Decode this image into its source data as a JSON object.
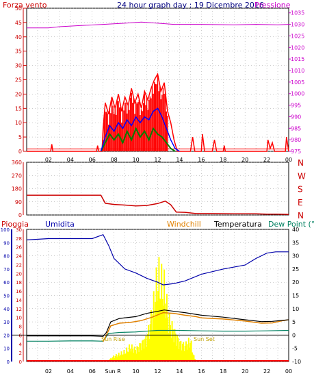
{
  "header": {
    "title": "24 hour graph day : 19 Dicembre 2016",
    "left_label": "Forza vento",
    "right_label": "Pressione"
  },
  "labels": {
    "pioggia": "Pioggia",
    "umidita": "Umidita",
    "windchill": "Windchill",
    "temperatura": "Temperatura",
    "dew_point": "Dew Point (°C",
    "sun_rise": "Sun Rise",
    "sun_set": "Sun Set",
    "sun_rise_axis": "Sun R"
  },
  "colors": {
    "wind": "#ff0000",
    "gust": "#ff0000",
    "avg": "#0000ff",
    "green": "#008000",
    "pressure": "#cc00cc",
    "direction": "#cc0000",
    "humidity": "#0000aa",
    "temperature": "#000000",
    "windchill": "#e08000",
    "dewpoint": "#008060",
    "rain": "#ff0000",
    "solar": "#ffff00",
    "axis_left": "#cc0000",
    "axis_humidity": "#0000aa",
    "axis_rain": "#cc0000",
    "axis_temp": "#000000",
    "grid": "#999999"
  },
  "chart_data": [
    {
      "type": "line",
      "name": "wind",
      "x_ticks": [
        "02",
        "04",
        "06",
        "08",
        "10",
        "12",
        "14",
        "16",
        "18",
        "20",
        "22",
        "00"
      ],
      "y_left_ticks": [
        "0",
        "5",
        "10",
        "15",
        "20",
        "25",
        "30",
        "35",
        "40",
        "45",
        "50"
      ],
      "y_right_ticks": [
        "975",
        "980",
        "985",
        "990",
        "995",
        "1000",
        "1005",
        "1010",
        "1015",
        "1020",
        "1025",
        "1030",
        "1035"
      ],
      "ylim_left": [
        0,
        50
      ],
      "ylim_right": [
        975,
        1037
      ],
      "xlim": [
        0,
        24
      ],
      "pressure": [
        [
          0,
          1028.5
        ],
        [
          2,
          1028.5
        ],
        [
          3,
          1029
        ],
        [
          5,
          1029.5
        ],
        [
          7,
          1030
        ],
        [
          9,
          1030.5
        ],
        [
          10.5,
          1031
        ],
        [
          12,
          1030.5
        ],
        [
          13.5,
          1030
        ],
        [
          16,
          1030
        ],
        [
          19,
          1029.8
        ],
        [
          21,
          1030
        ],
        [
          23,
          1029.8
        ],
        [
          24,
          1030
        ]
      ],
      "gust": [
        [
          0,
          0
        ],
        [
          2.2,
          0
        ],
        [
          2.3,
          2.5
        ],
        [
          2.4,
          0
        ],
        [
          6.4,
          0
        ],
        [
          6.5,
          2
        ],
        [
          6.6,
          0
        ],
        [
          6.9,
          0
        ],
        [
          7,
          8
        ],
        [
          7.2,
          17
        ],
        [
          7.5,
          13
        ],
        [
          7.8,
          19
        ],
        [
          8.1,
          15
        ],
        [
          8.4,
          20
        ],
        [
          8.7,
          14
        ],
        [
          9,
          19
        ],
        [
          9.3,
          16
        ],
        [
          9.6,
          22
        ],
        [
          9.9,
          17
        ],
        [
          10.2,
          20
        ],
        [
          10.5,
          15
        ],
        [
          10.8,
          21
        ],
        [
          11.1,
          18
        ],
        [
          11.4,
          22
        ],
        [
          11.7,
          25
        ],
        [
          12,
          27
        ],
        [
          12.3,
          21
        ],
        [
          12.6,
          24
        ],
        [
          12.9,
          14
        ],
        [
          13.2,
          10
        ],
        [
          13.5,
          4
        ],
        [
          13.8,
          0
        ],
        [
          15,
          0
        ],
        [
          15.2,
          5
        ],
        [
          15.4,
          0
        ],
        [
          16,
          0
        ],
        [
          16.1,
          6
        ],
        [
          16.3,
          0
        ],
        [
          17,
          0
        ],
        [
          17.2,
          4
        ],
        [
          17.4,
          0
        ],
        [
          18,
          0
        ],
        [
          18.1,
          2
        ],
        [
          18.2,
          0
        ],
        [
          22,
          0
        ],
        [
          22.1,
          4
        ],
        [
          22.3,
          1
        ],
        [
          22.5,
          3
        ],
        [
          22.7,
          0
        ],
        [
          23.7,
          0
        ],
        [
          23.8,
          5
        ],
        [
          24,
          0
        ]
      ],
      "avg": [
        [
          6.8,
          0
        ],
        [
          7.2,
          5
        ],
        [
          7.6,
          9
        ],
        [
          8,
          7
        ],
        [
          8.4,
          10
        ],
        [
          8.8,
          8
        ],
        [
          9.2,
          11
        ],
        [
          9.6,
          9
        ],
        [
          10,
          12
        ],
        [
          10.4,
          10
        ],
        [
          10.8,
          12
        ],
        [
          11.2,
          11
        ],
        [
          11.6,
          14
        ],
        [
          12,
          15
        ],
        [
          12.4,
          12
        ],
        [
          12.8,
          8
        ],
        [
          13.2,
          4
        ],
        [
          13.6,
          1
        ],
        [
          14,
          0
        ]
      ],
      "low": [
        [
          6.8,
          0
        ],
        [
          7.2,
          3
        ],
        [
          7.6,
          6
        ],
        [
          8,
          4
        ],
        [
          8.4,
          6
        ],
        [
          8.8,
          3
        ],
        [
          9.2,
          7
        ],
        [
          9.6,
          4
        ],
        [
          10,
          8
        ],
        [
          10.4,
          5
        ],
        [
          10.8,
          7
        ],
        [
          11.2,
          4
        ],
        [
          11.6,
          8
        ],
        [
          12,
          6
        ],
        [
          12.4,
          5
        ],
        [
          12.8,
          3
        ],
        [
          13.2,
          1
        ],
        [
          13.6,
          0
        ]
      ],
      "base_wind": 0.8
    },
    {
      "type": "line",
      "name": "direction",
      "y_ticks": [
        "0",
        "90",
        "180",
        "270",
        "360"
      ],
      "y_right_ticks": [
        "N",
        "W",
        "S",
        "E",
        "N"
      ],
      "ylim": [
        0,
        360
      ],
      "values": [
        [
          0,
          135
        ],
        [
          6.8,
          135
        ],
        [
          7.2,
          80
        ],
        [
          8,
          72
        ],
        [
          9,
          68
        ],
        [
          10,
          62
        ],
        [
          11,
          65
        ],
        [
          12,
          78
        ],
        [
          12.7,
          95
        ],
        [
          13.2,
          70
        ],
        [
          13.7,
          20
        ],
        [
          14.5,
          18
        ],
        [
          15.5,
          10
        ],
        [
          17,
          10
        ],
        [
          19,
          8
        ],
        [
          21,
          8
        ],
        [
          22,
          6
        ],
        [
          23,
          6
        ],
        [
          24,
          4
        ]
      ]
    },
    {
      "type": "line",
      "name": "temperature_humidity",
      "y_humidity_ticks": [
        "0",
        "10",
        "20",
        "30",
        "40",
        "50",
        "60",
        "70",
        "80",
        "90",
        "100"
      ],
      "y_rain_ticks": [
        "0",
        "2",
        "4",
        "6",
        "8",
        "10",
        "12",
        "14",
        "16",
        "18",
        "20",
        "22",
        "24",
        "26",
        "28",
        "30"
      ],
      "y_temp_ticks": [
        "-10",
        "-5",
        "0",
        "5",
        "10",
        "15",
        "20",
        "25",
        "30",
        "35",
        "40"
      ],
      "ylim_humidity": [
        0,
        100
      ],
      "ylim_temp": [
        -10,
        40
      ],
      "humidity": [
        [
          0,
          92
        ],
        [
          2,
          93
        ],
        [
          4,
          93
        ],
        [
          6,
          93
        ],
        [
          7,
          96
        ],
        [
          7.5,
          88
        ],
        [
          8,
          78
        ],
        [
          9,
          70
        ],
        [
          10,
          67
        ],
        [
          11,
          63
        ],
        [
          12,
          60
        ],
        [
          12.5,
          58
        ],
        [
          13.5,
          59
        ],
        [
          14.5,
          61
        ],
        [
          16,
          66
        ],
        [
          18,
          70
        ],
        [
          20,
          73
        ],
        [
          21,
          78
        ],
        [
          22,
          82
        ],
        [
          22.8,
          83
        ],
        [
          24,
          83
        ]
      ],
      "temperature": [
        [
          0,
          -0.3
        ],
        [
          2,
          -0.3
        ],
        [
          4,
          -0.3
        ],
        [
          6,
          -0.3
        ],
        [
          7,
          -0.5
        ],
        [
          7.3,
          1
        ],
        [
          7.7,
          5
        ],
        [
          8.5,
          6.3
        ],
        [
          10,
          7
        ],
        [
          11,
          8.2
        ],
        [
          12,
          9
        ],
        [
          12.6,
          9.5
        ],
        [
          13.5,
          9
        ],
        [
          14.5,
          8.5
        ],
        [
          16,
          7.5
        ],
        [
          18,
          6.8
        ],
        [
          20,
          5.8
        ],
        [
          21.5,
          5.1
        ],
        [
          22.5,
          5.2
        ],
        [
          24,
          5.8
        ]
      ],
      "windchill": [
        [
          7,
          -2.5
        ],
        [
          7.3,
          0
        ],
        [
          7.7,
          3.5
        ],
        [
          8.5,
          4.5
        ],
        [
          9.5,
          4.8
        ],
        [
          10.5,
          5.5
        ],
        [
          11.5,
          6.8
        ],
        [
          12.5,
          8.5
        ],
        [
          13.5,
          8.2
        ],
        [
          14.5,
          7.5
        ],
        [
          15.5,
          7
        ],
        [
          16,
          6.5
        ],
        [
          17,
          6.3
        ],
        [
          18,
          6.1
        ],
        [
          20,
          5.3
        ],
        [
          21.5,
          4.5
        ],
        [
          22.5,
          4.6
        ],
        [
          23.5,
          5.5
        ],
        [
          24,
          5.8
        ]
      ],
      "dewpoint": [
        [
          0,
          -2.3
        ],
        [
          2,
          -2.3
        ],
        [
          4,
          -2.2
        ],
        [
          6,
          -2.2
        ],
        [
          7,
          -2.3
        ],
        [
          7.5,
          0.6
        ],
        [
          8.5,
          1
        ],
        [
          10,
          1.2
        ],
        [
          12,
          1.8
        ],
        [
          14,
          1.8
        ],
        [
          16,
          1.6
        ],
        [
          18,
          1.5
        ],
        [
          20,
          1.5
        ],
        [
          22,
          1.6
        ],
        [
          24,
          1.8
        ]
      ],
      "solar": [
        [
          7.4,
          0
        ],
        [
          7.6,
          2
        ],
        [
          8,
          5
        ],
        [
          9,
          9
        ],
        [
          9.5,
          14
        ],
        [
          10,
          11
        ],
        [
          10.5,
          17
        ],
        [
          11,
          22
        ],
        [
          11.5,
          45
        ],
        [
          11.8,
          65
        ],
        [
          12,
          82
        ],
        [
          12.3,
          75
        ],
        [
          12.6,
          70
        ],
        [
          13,
          40
        ],
        [
          13.5,
          28
        ],
        [
          14,
          18
        ],
        [
          14.5,
          15
        ],
        [
          15,
          20
        ],
        [
          15.3,
          5
        ],
        [
          15.6,
          0
        ]
      ],
      "rain": 0
    }
  ]
}
